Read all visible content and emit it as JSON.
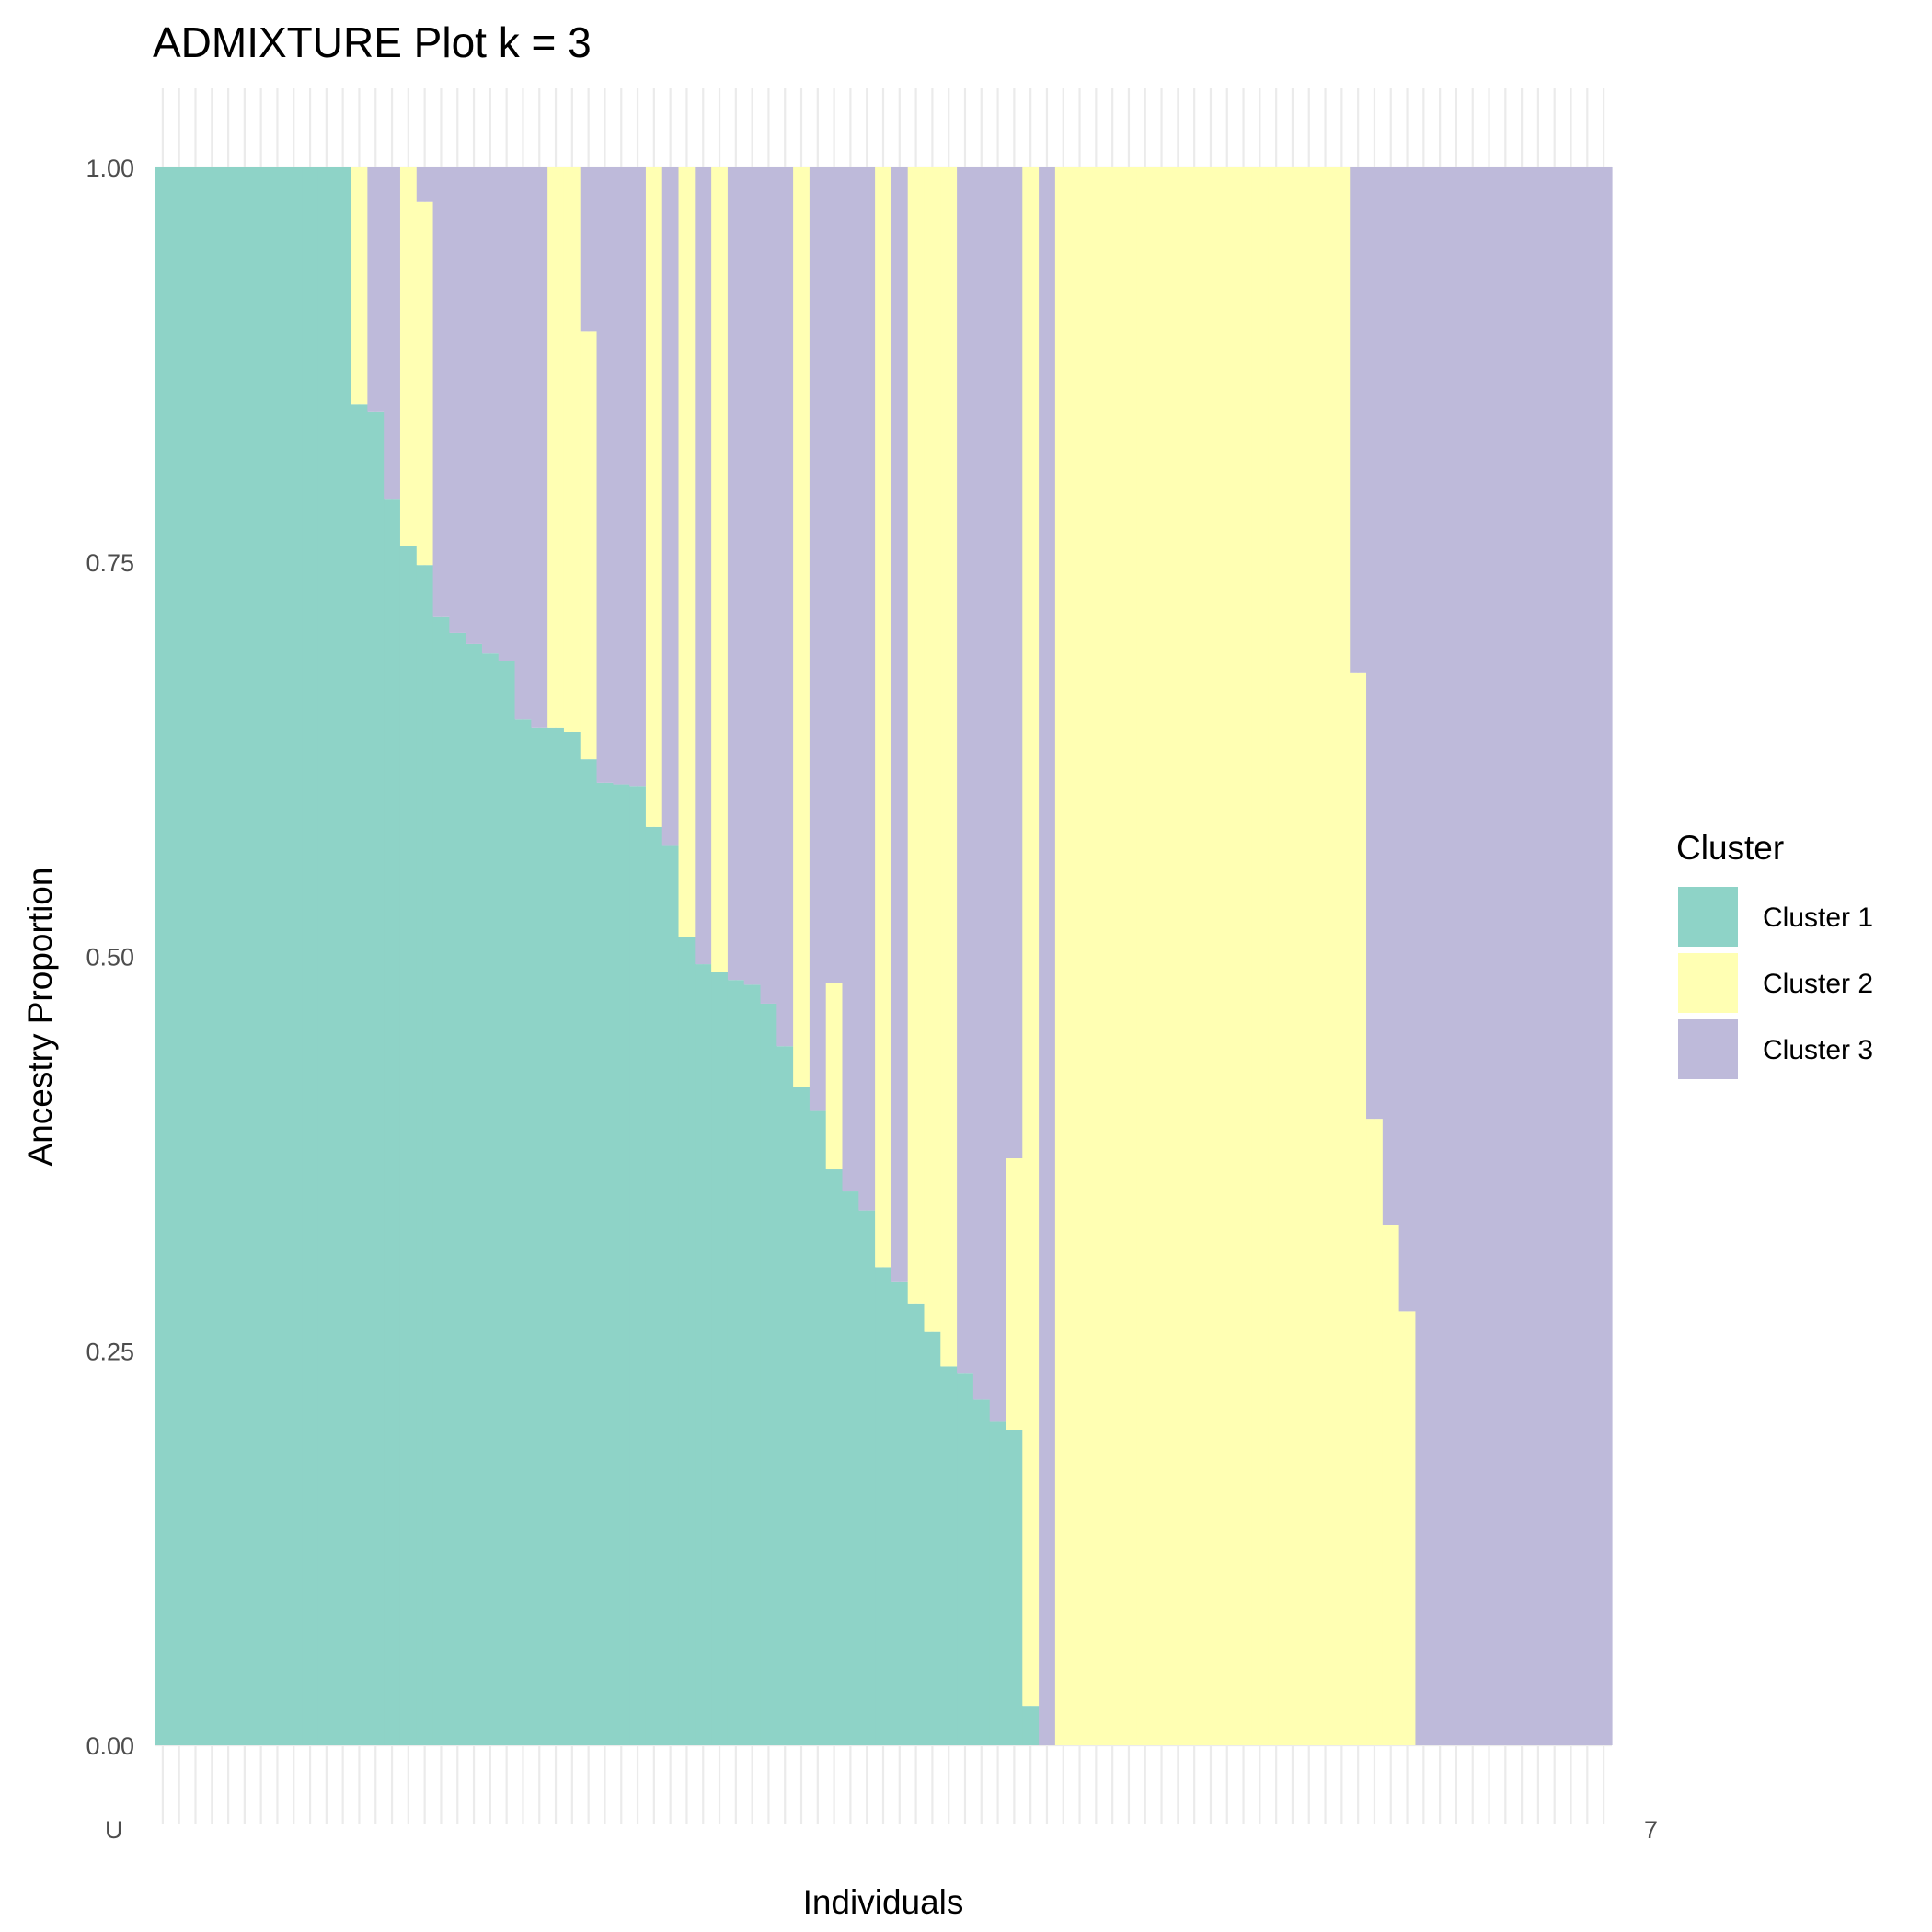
{
  "chart_data": {
    "type": "bar",
    "stacked": true,
    "title": "ADMIXTURE Plot k = 3",
    "xlabel": "Individuals",
    "ylabel": "Ancestry Proportion",
    "ylim": [
      0,
      1
    ],
    "yticks": [
      "0.00",
      "0.25",
      "0.50",
      "0.75",
      "1.00"
    ],
    "grid": true,
    "legend": {
      "title": "Cluster",
      "position": "right"
    },
    "colors": {
      "Cluster 1": "#8ED3C7",
      "Cluster 2": "#FFFFB3",
      "Cluster 3": "#BEBADA"
    },
    "x_tick_text_first": "U",
    "x_tick_text_last": "7",
    "series_names": [
      "Cluster 1",
      "Cluster 2",
      "Cluster 3"
    ],
    "individuals": [
      [
        1,
        0,
        0
      ],
      [
        1,
        0,
        0
      ],
      [
        1,
        0,
        0
      ],
      [
        1,
        0,
        0
      ],
      [
        1,
        0,
        0
      ],
      [
        1,
        0,
        0
      ],
      [
        1,
        0,
        0
      ],
      [
        1,
        0,
        0
      ],
      [
        1,
        0,
        0
      ],
      [
        1,
        0,
        0
      ],
      [
        1,
        0,
        0
      ],
      [
        1,
        0,
        0
      ],
      [
        0.85,
        0.15,
        0
      ],
      [
        0.845,
        0,
        0.155
      ],
      [
        0.79,
        0,
        0.21
      ],
      [
        0.76,
        0.24,
        0
      ],
      [
        0.748,
        0.23,
        0.022
      ],
      [
        0.715,
        0,
        0.285
      ],
      [
        0.705,
        0,
        0.295
      ],
      [
        0.698,
        0,
        0.302
      ],
      [
        0.692,
        0,
        0.308
      ],
      [
        0.687,
        0,
        0.313
      ],
      [
        0.65,
        0,
        0.35
      ],
      [
        0.645,
        0,
        0.355
      ],
      [
        0.645,
        0.355,
        0
      ],
      [
        0.642,
        0.358,
        0
      ],
      [
        0.625,
        0.271,
        0.104
      ],
      [
        0.61,
        0,
        0.39
      ],
      [
        0.609,
        0,
        0.391
      ],
      [
        0.608,
        0,
        0.392
      ],
      [
        0.582,
        0.418,
        0
      ],
      [
        0.57,
        0,
        0.43
      ],
      [
        0.512,
        0.488,
        0
      ],
      [
        0.495,
        0,
        0.505
      ],
      [
        0.49,
        0.51,
        0
      ],
      [
        0.485,
        0,
        0.515
      ],
      [
        0.482,
        0,
        0.518
      ],
      [
        0.47,
        0,
        0.53
      ],
      [
        0.443,
        0,
        0.557
      ],
      [
        0.417,
        0.583,
        0
      ],
      [
        0.402,
        0,
        0.598
      ],
      [
        0.365,
        0.118,
        0.517
      ],
      [
        0.351,
        0,
        0.649
      ],
      [
        0.339,
        0,
        0.661
      ],
      [
        0.303,
        0.697,
        0
      ],
      [
        0.294,
        0,
        0.706
      ],
      [
        0.28,
        0.72,
        0
      ],
      [
        0.262,
        0.738,
        0
      ],
      [
        0.24,
        0.76,
        0
      ],
      [
        0.236,
        0,
        0.764
      ],
      [
        0.219,
        0,
        0.781
      ],
      [
        0.205,
        0,
        0.795
      ],
      [
        0.2,
        0.172,
        0.628
      ],
      [
        0.025,
        0.975,
        0
      ],
      [
        0,
        0,
        1
      ],
      [
        0,
        1,
        0
      ],
      [
        0,
        1,
        0
      ],
      [
        0,
        1,
        0
      ],
      [
        0,
        1,
        0
      ],
      [
        0,
        1,
        0
      ],
      [
        0,
        1,
        0
      ],
      [
        0,
        1,
        0
      ],
      [
        0,
        1,
        0
      ],
      [
        0,
        1,
        0
      ],
      [
        0,
        1,
        0
      ],
      [
        0,
        1,
        0
      ],
      [
        0,
        1,
        0
      ],
      [
        0,
        1,
        0
      ],
      [
        0,
        1,
        0
      ],
      [
        0,
        1,
        0
      ],
      [
        0,
        1,
        0
      ],
      [
        0,
        1,
        0
      ],
      [
        0,
        1,
        0
      ],
      [
        0,
        0.68,
        0.32
      ],
      [
        0,
        0.397,
        0.603
      ],
      [
        0,
        0.33,
        0.67
      ],
      [
        0,
        0.275,
        0.725
      ],
      [
        0,
        0,
        1
      ],
      [
        0,
        0,
        1
      ],
      [
        0,
        0,
        1
      ],
      [
        0,
        0,
        1
      ],
      [
        0,
        0,
        1
      ],
      [
        0,
        0,
        1
      ],
      [
        0,
        0,
        1
      ],
      [
        0,
        0,
        1
      ],
      [
        0,
        0,
        1
      ],
      [
        0,
        0,
        1
      ],
      [
        0,
        0,
        1
      ],
      [
        0,
        0,
        1
      ]
    ]
  }
}
